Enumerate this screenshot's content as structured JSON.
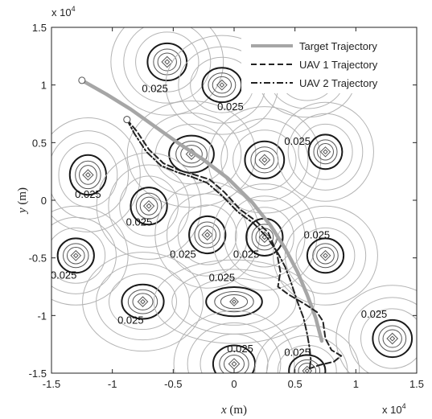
{
  "chart_data": {
    "type": "line",
    "title": "",
    "xlabel_var": "x",
    "xlabel_unit": "(m)",
    "ylabel_var": "y",
    "ylabel_unit": "(m)",
    "x_exponent_label": "x 10",
    "x_exponent_power": "4",
    "y_exponent_label": "x 10",
    "y_exponent_power": "4",
    "xlim": [
      -1.5,
      1.5
    ],
    "ylim": [
      -1.5,
      1.5
    ],
    "x_ticks": [
      -1.5,
      -1,
      -0.5,
      0,
      0.5,
      1,
      1.5
    ],
    "x_tick_labels": [
      "-1.5",
      "-1",
      "-0.5",
      "0",
      "0.5",
      "1",
      "1.5"
    ],
    "y_ticks": [
      -1.5,
      -1,
      -0.5,
      0,
      0.5,
      1,
      1.5
    ],
    "y_tick_labels": [
      "-1.5",
      "-1",
      "-0.5",
      "0",
      "0.5",
      "1",
      "1.5"
    ],
    "legend_position": "top-right",
    "series": [
      {
        "name": "Target Trajectory",
        "style": "solid-thick",
        "color": "#a6a6a6",
        "x": [
          -1.25,
          -1.05,
          -0.85,
          -0.65,
          -0.45,
          -0.25,
          -0.05,
          0.15,
          0.3,
          0.42,
          0.52,
          0.6,
          0.67,
          0.72
        ],
        "y": [
          1.04,
          0.92,
          0.79,
          0.64,
          0.49,
          0.35,
          0.19,
          -0.02,
          -0.22,
          -0.42,
          -0.62,
          -0.82,
          -1.02,
          -1.22
        ]
      },
      {
        "name": "UAV 1 Trajectory",
        "style": "dashed",
        "color": "#222222",
        "x": [
          -0.88,
          -0.8,
          -0.7,
          -0.58,
          -0.45,
          -0.32,
          -0.2,
          -0.08,
          0.05,
          0.18,
          0.28,
          0.35,
          0.38,
          0.36,
          0.45,
          0.58,
          0.68,
          0.73,
          0.75,
          0.8,
          0.88,
          0.82,
          0.7,
          0.62
        ],
        "y": [
          0.7,
          0.6,
          0.44,
          0.32,
          0.26,
          0.22,
          0.18,
          0.07,
          -0.08,
          -0.18,
          -0.28,
          -0.45,
          -0.62,
          -0.75,
          -0.82,
          -0.9,
          -0.97,
          -1.05,
          -1.2,
          -1.3,
          -1.35,
          -1.4,
          -1.43,
          -1.46
        ]
      },
      {
        "name": "UAV 2 Trajectory",
        "style": "dash-dot",
        "color": "#222222",
        "x": [
          -0.88,
          -0.82,
          -0.72,
          -0.6,
          -0.46,
          -0.34,
          -0.22,
          -0.1,
          0.03,
          0.16,
          0.27,
          0.36,
          0.42,
          0.47,
          0.52,
          0.57,
          0.6,
          0.62,
          0.63,
          0.62
        ],
        "y": [
          0.7,
          0.58,
          0.42,
          0.3,
          0.24,
          0.2,
          0.15,
          0.04,
          -0.1,
          -0.2,
          -0.32,
          -0.46,
          -0.58,
          -0.72,
          -0.88,
          -1.02,
          -1.16,
          -1.28,
          -1.38,
          -1.47
        ]
      }
    ],
    "contour_sources": [
      {
        "x": -0.55,
        "y": 1.2,
        "rx": 0.14,
        "ry": 0.14
      },
      {
        "x": -0.1,
        "y": 1.0,
        "rx": 0.14,
        "ry": 0.13
      },
      {
        "x": 0.6,
        "y": 1.05,
        "rx": 0.12,
        "ry": 0.1
      },
      {
        "x": -1.2,
        "y": 0.22,
        "rx": 0.13,
        "ry": 0.15
      },
      {
        "x": -0.35,
        "y": 0.4,
        "rx": 0.16,
        "ry": 0.14
      },
      {
        "x": 0.25,
        "y": 0.35,
        "rx": 0.14,
        "ry": 0.14
      },
      {
        "x": 0.75,
        "y": 0.42,
        "rx": 0.12,
        "ry": 0.13
      },
      {
        "x": -0.7,
        "y": -0.05,
        "rx": 0.13,
        "ry": 0.14
      },
      {
        "x": -0.22,
        "y": -0.3,
        "rx": 0.13,
        "ry": 0.14
      },
      {
        "x": 0.25,
        "y": -0.32,
        "rx": 0.13,
        "ry": 0.14
      },
      {
        "x": 0.75,
        "y": -0.48,
        "rx": 0.13,
        "ry": 0.13
      },
      {
        "x": -1.3,
        "y": -0.48,
        "rx": 0.13,
        "ry": 0.13
      },
      {
        "x": -0.75,
        "y": -0.88,
        "rx": 0.15,
        "ry": 0.13
      },
      {
        "x": 0.0,
        "y": -0.88,
        "rx": 0.2,
        "ry": 0.11
      },
      {
        "x": 1.3,
        "y": -1.2,
        "rx": 0.14,
        "ry": 0.14
      },
      {
        "x": 0.0,
        "y": -1.42,
        "rx": 0.15,
        "ry": 0.14
      },
      {
        "x": 0.6,
        "y": -1.48,
        "rx": 0.13,
        "ry": 0.12
      }
    ],
    "contour_labels": [
      {
        "text": "0.025",
        "x": -0.65,
        "y": 0.94
      },
      {
        "text": "0.025",
        "x": -0.03,
        "y": 0.78
      },
      {
        "text": "0.025",
        "x": 0.52,
        "y": 0.48
      },
      {
        "text": "0.025",
        "x": -1.2,
        "y": 0.02
      },
      {
        "text": "0.025",
        "x": -0.78,
        "y": -0.22
      },
      {
        "text": "0.025",
        "x": -0.42,
        "y": -0.5
      },
      {
        "text": "0.025",
        "x": 0.1,
        "y": -0.5
      },
      {
        "text": "0.025",
        "x": 0.68,
        "y": -0.33
      },
      {
        "text": "0.025",
        "x": -1.4,
        "y": -0.68
      },
      {
        "text": "0.025",
        "x": -0.1,
        "y": -0.7
      },
      {
        "text": "0.025",
        "x": -0.85,
        "y": -1.07
      },
      {
        "text": "0.025",
        "x": 1.15,
        "y": -1.02
      },
      {
        "text": "0.025",
        "x": 0.05,
        "y": -1.32
      },
      {
        "text": "0.025",
        "x": 0.52,
        "y": -1.35
      }
    ]
  }
}
